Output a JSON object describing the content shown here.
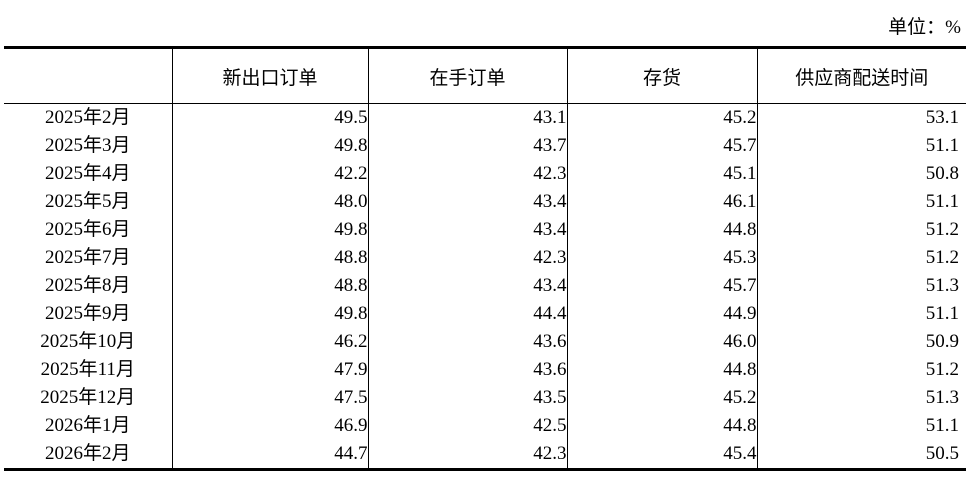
{
  "unit_label": "单位：%",
  "colors": {
    "background": "#ffffff",
    "text": "#000000",
    "rule": "#000000"
  },
  "table": {
    "columns": [
      "",
      "新出口订单",
      "在手订单",
      "存货",
      "供应商配送时间"
    ],
    "rows": [
      {
        "label": "2025年2月",
        "values": [
          "49.5",
          "43.1",
          "45.2",
          "53.1"
        ]
      },
      {
        "label": "2025年3月",
        "values": [
          "49.8",
          "43.7",
          "45.7",
          "51.1"
        ]
      },
      {
        "label": "2025年4月",
        "values": [
          "42.2",
          "42.3",
          "45.1",
          "50.8"
        ]
      },
      {
        "label": "2025年5月",
        "values": [
          "48.0",
          "43.4",
          "46.1",
          "51.1"
        ]
      },
      {
        "label": "2025年6月",
        "values": [
          "49.8",
          "43.4",
          "44.8",
          "51.2"
        ]
      },
      {
        "label": "2025年7月",
        "values": [
          "48.8",
          "42.3",
          "45.3",
          "51.2"
        ]
      },
      {
        "label": "2025年8月",
        "values": [
          "48.8",
          "43.4",
          "45.7",
          "51.3"
        ]
      },
      {
        "label": "2025年9月",
        "values": [
          "49.8",
          "44.4",
          "44.9",
          "51.1"
        ]
      },
      {
        "label": "2025年10月",
        "values": [
          "46.2",
          "43.6",
          "46.0",
          "50.9"
        ]
      },
      {
        "label": "2025年11月",
        "values": [
          "47.9",
          "43.6",
          "44.8",
          "51.2"
        ]
      },
      {
        "label": "2025年12月",
        "values": [
          "47.5",
          "43.5",
          "45.2",
          "51.3"
        ]
      },
      {
        "label": "2026年1月",
        "values": [
          "46.9",
          "42.5",
          "44.8",
          "51.1"
        ]
      },
      {
        "label": "2026年2月",
        "values": [
          "44.7",
          "42.3",
          "45.4",
          "50.5"
        ]
      }
    ]
  },
  "chart_data": {
    "type": "table",
    "title": "",
    "unit": "%",
    "categories": [
      "2025年2月",
      "2025年3月",
      "2025年4月",
      "2025年5月",
      "2025年6月",
      "2025年7月",
      "2025年8月",
      "2025年9月",
      "2025年10月",
      "2025年11月",
      "2025年12月",
      "2026年1月",
      "2026年2月"
    ],
    "series": [
      {
        "name": "新出口订单",
        "values": [
          49.5,
          49.8,
          42.2,
          48.0,
          49.8,
          48.8,
          48.8,
          49.8,
          46.2,
          47.9,
          47.5,
          46.9,
          44.7
        ]
      },
      {
        "name": "在手订单",
        "values": [
          43.1,
          43.7,
          42.3,
          43.4,
          43.4,
          42.3,
          43.4,
          44.4,
          43.6,
          43.6,
          43.5,
          42.5,
          42.3
        ]
      },
      {
        "name": "存货",
        "values": [
          45.2,
          45.7,
          45.1,
          46.1,
          44.8,
          45.3,
          45.7,
          44.9,
          46.0,
          44.8,
          45.2,
          44.8,
          45.4
        ]
      },
      {
        "name": "供应商配送时间",
        "values": [
          53.1,
          51.1,
          50.8,
          51.1,
          51.2,
          51.2,
          51.3,
          51.1,
          50.9,
          51.2,
          51.3,
          51.1,
          50.5
        ]
      }
    ]
  }
}
